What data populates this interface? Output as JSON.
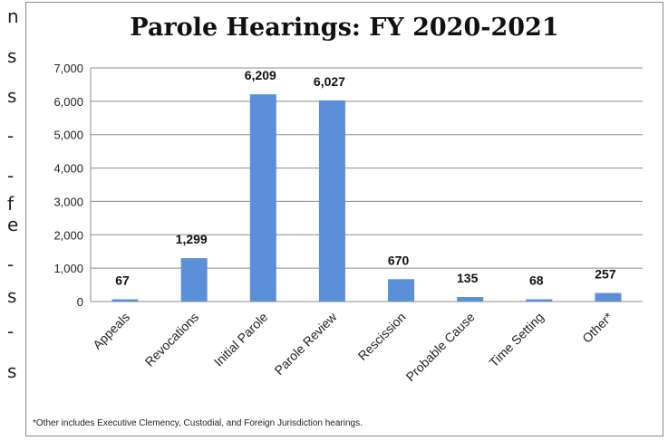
{
  "left_fragments": [
    "n",
    "s",
    "s",
    "-",
    "-",
    "f",
    "e",
    "-",
    "s",
    "-",
    "s"
  ],
  "chart_data": {
    "type": "bar",
    "title": "Parole Hearings: FY 2020-2021",
    "categories": [
      "Appeals",
      "Revocations",
      "Initial Parole",
      "Parole Review",
      "Rescission",
      "Probable Cause",
      "Time Setting",
      "Other*"
    ],
    "values": [
      67,
      1299,
      6209,
      6027,
      670,
      135,
      68,
      257
    ],
    "data_labels": [
      "67",
      "1,299",
      "6,209",
      "6,027",
      "670",
      "135",
      "68",
      "257"
    ],
    "ylim": [
      0,
      7000
    ],
    "yticks": [
      "0",
      "1,000",
      "2,000",
      "3,000",
      "4,000",
      "5,000",
      "6,000",
      "7,000"
    ],
    "xlabel": "",
    "ylabel": "",
    "grid": true,
    "bar_color": "#5b8fd8",
    "footnote": "*Other includes Executive Clemency, Custodial, and Foreign Jurisdiction hearings."
  }
}
